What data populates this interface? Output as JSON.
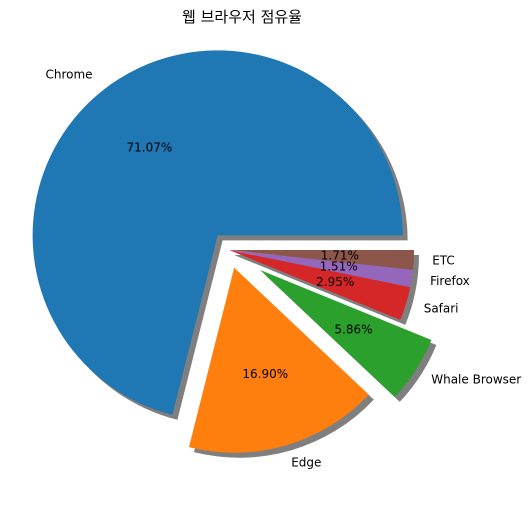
{
  "chart_data": {
    "type": "pie",
    "title": "웹 브라우저 점유율",
    "slices": [
      {
        "label": "Chrome",
        "value": 71.07,
        "pct_label": "71.07%",
        "color": "#1f77b4",
        "explode": 0.1
      },
      {
        "label": "Edge",
        "value": 16.9,
        "pct_label": "16.90%",
        "color": "#ff7f0e",
        "explode": 0.1
      },
      {
        "label": "Whale Browser",
        "value": 5.86,
        "pct_label": "5.86%",
        "color": "#2ca02c",
        "explode": 0.2
      },
      {
        "label": "Safari",
        "value": 2.95,
        "pct_label": "2.95%",
        "color": "#d62728",
        "explode": 0.0
      },
      {
        "label": "Firefox",
        "value": 1.51,
        "pct_label": "1.51%",
        "color": "#9467bd",
        "explode": 0.0
      },
      {
        "label": "ETC",
        "value": 1.71,
        "pct_label": "1.71%",
        "color": "#8c564b",
        "explode": 0.0
      }
    ],
    "start_angle_deg": 0,
    "direction": "counterclockwise",
    "shadow": true
  }
}
